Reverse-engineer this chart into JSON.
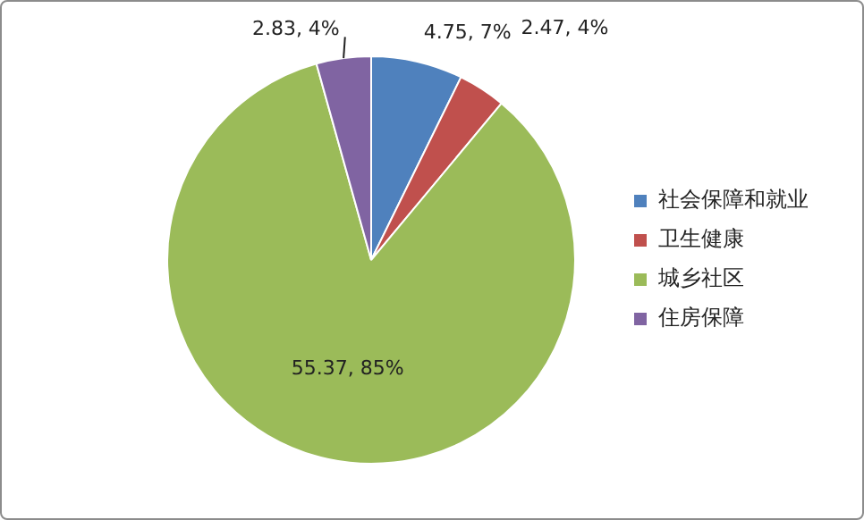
{
  "chart_data": {
    "type": "pie",
    "categories": [
      "社会保障和就业",
      "卫生健康",
      "城乡社区",
      "住房保障"
    ],
    "values": [
      4.75,
      2.47,
      55.37,
      2.83
    ],
    "colors": [
      "#4f81bd",
      "#c0504d",
      "#9bbb59",
      "#8064a2"
    ],
    "value_labels": [
      "4.75, 7%",
      "2.47, 4%",
      "55.37, 85%",
      "2.83, 4%"
    ],
    "legend": "right"
  }
}
